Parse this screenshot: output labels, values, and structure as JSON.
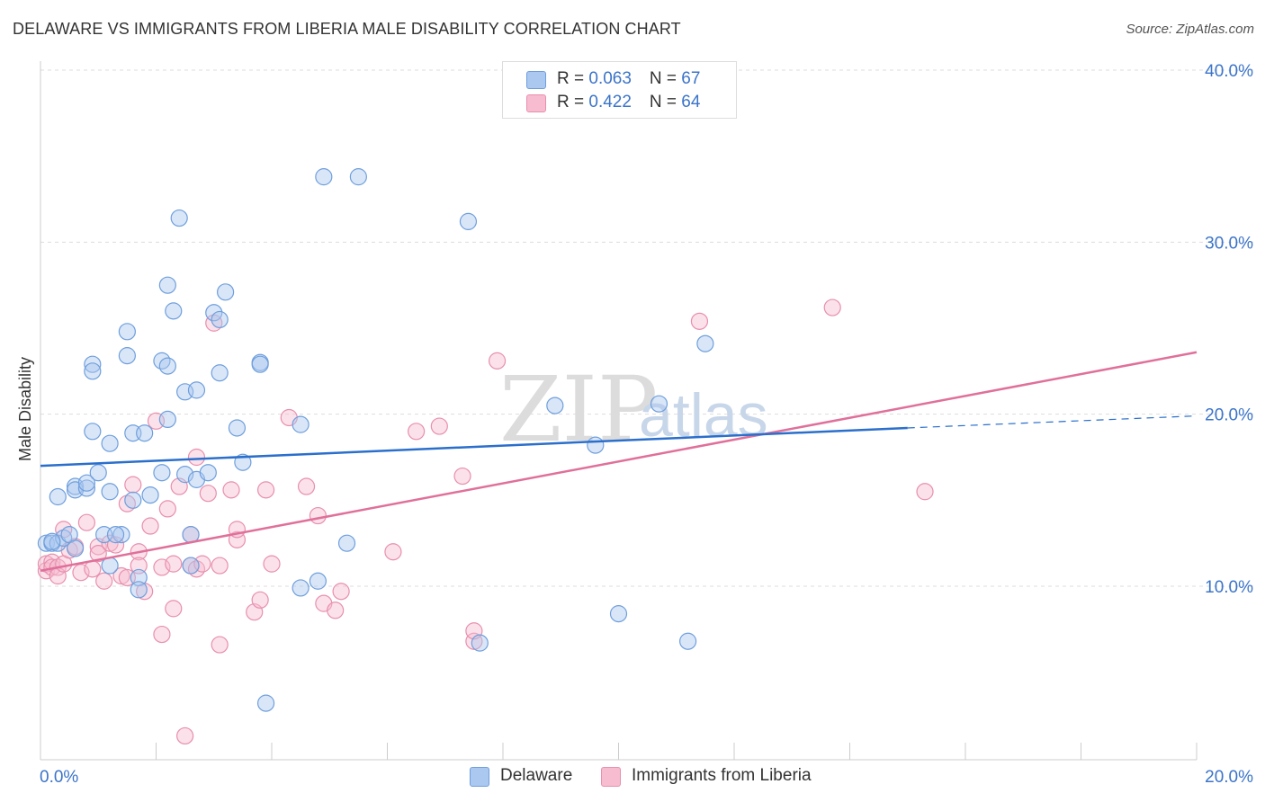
{
  "title": "DELAWARE VS IMMIGRANTS FROM LIBERIA MALE DISABILITY CORRELATION CHART",
  "source": "Source: ZipAtlas.com",
  "watermark": {
    "zip": "ZIP",
    "atlas": "atlas"
  },
  "legend": {
    "delaware": {
      "r_label": "R = ",
      "r_value": "0.063",
      "n_label": "N = ",
      "n_value": "67"
    },
    "liberia": {
      "r_label": "R = ",
      "r_value": "0.422",
      "n_label": "N = ",
      "n_value": "64"
    }
  },
  "bottom_legend": {
    "delaware": "Delaware",
    "liberia": "Immigrants from Liberia"
  },
  "colors": {
    "delaware_fill": "#aac8f0",
    "delaware_stroke": "#6f9fdc",
    "delaware_line": "#2b6fcc",
    "liberia_fill": "#f7bcd0",
    "liberia_stroke": "#e88fae",
    "liberia_line": "#e0709a",
    "label": "#3b74c9",
    "grid": "#dddddd"
  },
  "chart_data": {
    "type": "scatter",
    "title": "DELAWARE VS IMMIGRANTS FROM LIBERIA MALE DISABILITY CORRELATION CHART",
    "xlabel": "",
    "ylabel": "Male Disability",
    "xlim": [
      0,
      20
    ],
    "ylim": [
      0,
      42
    ],
    "x_tick_labels": {
      "left": "0.0%",
      "right": "20.0%"
    },
    "y_ticks": [
      10,
      20,
      30,
      40
    ],
    "y_tick_labels": [
      "10.0%",
      "20.0%",
      "30.0%",
      "40.0%"
    ],
    "series": [
      {
        "name": "Delaware",
        "r": 0.063,
        "n": 67,
        "trend": {
          "x0": 0.0,
          "y0": 17.0,
          "x1": 15.0,
          "y1": 19.2,
          "dash_to_x": 20.0,
          "dash_to_y": 19.9
        },
        "points": [
          [
            0.1,
            12.5
          ],
          [
            0.2,
            12.5
          ],
          [
            0.3,
            12.5
          ],
          [
            0.4,
            12.8
          ],
          [
            0.5,
            13.0
          ],
          [
            0.6,
            12.2
          ],
          [
            0.3,
            15.2
          ],
          [
            0.6,
            15.8
          ],
          [
            0.6,
            15.6
          ],
          [
            0.8,
            15.7
          ],
          [
            0.8,
            16.0
          ],
          [
            1.0,
            16.6
          ],
          [
            1.1,
            13.0
          ],
          [
            1.2,
            11.2
          ],
          [
            1.2,
            15.5
          ],
          [
            0.9,
            19.0
          ],
          [
            1.2,
            18.3
          ],
          [
            0.9,
            22.9
          ],
          [
            0.9,
            22.5
          ],
          [
            1.5,
            24.8
          ],
          [
            1.5,
            23.4
          ],
          [
            1.6,
            18.9
          ],
          [
            1.6,
            15.0
          ],
          [
            1.7,
            10.5
          ],
          [
            1.7,
            9.8
          ],
          [
            1.8,
            18.9
          ],
          [
            1.9,
            15.3
          ],
          [
            1.4,
            13.0
          ],
          [
            2.1,
            23.1
          ],
          [
            2.1,
            16.6
          ],
          [
            2.2,
            27.5
          ],
          [
            2.2,
            22.8
          ],
          [
            2.2,
            19.7
          ],
          [
            2.3,
            26.0
          ],
          [
            2.4,
            31.4
          ],
          [
            2.5,
            21.3
          ],
          [
            2.5,
            16.5
          ],
          [
            2.6,
            11.2
          ],
          [
            2.6,
            13.0
          ],
          [
            2.7,
            16.2
          ],
          [
            2.7,
            21.4
          ],
          [
            2.9,
            16.6
          ],
          [
            3.0,
            25.9
          ],
          [
            3.1,
            25.5
          ],
          [
            3.1,
            22.4
          ],
          [
            3.2,
            27.1
          ],
          [
            3.4,
            19.2
          ],
          [
            3.5,
            17.2
          ],
          [
            3.8,
            23.0
          ],
          [
            3.8,
            22.9
          ],
          [
            4.5,
            19.4
          ],
          [
            4.5,
            9.9
          ],
          [
            4.8,
            10.3
          ],
          [
            4.9,
            33.8
          ],
          [
            5.3,
            12.5
          ],
          [
            5.5,
            33.8
          ],
          [
            7.4,
            31.2
          ],
          [
            7.6,
            6.7
          ],
          [
            8.9,
            20.5
          ],
          [
            9.6,
            18.2
          ],
          [
            10.0,
            8.4
          ],
          [
            10.7,
            20.6
          ],
          [
            11.2,
            6.8
          ],
          [
            11.5,
            24.1
          ],
          [
            3.9,
            3.2
          ],
          [
            1.3,
            13.0
          ],
          [
            0.2,
            12.6
          ]
        ]
      },
      {
        "name": "Immigrants from Liberia",
        "r": 0.422,
        "n": 64,
        "trend": {
          "x0": 0.0,
          "y0": 10.9,
          "x1": 20.0,
          "y1": 23.6
        },
        "points": [
          [
            0.1,
            10.9
          ],
          [
            0.1,
            11.3
          ],
          [
            0.2,
            11.4
          ],
          [
            0.2,
            11.1
          ],
          [
            0.3,
            11.1
          ],
          [
            0.3,
            10.6
          ],
          [
            0.4,
            11.3
          ],
          [
            0.4,
            13.3
          ],
          [
            0.5,
            12.1
          ],
          [
            0.6,
            12.3
          ],
          [
            0.7,
            10.8
          ],
          [
            0.8,
            13.7
          ],
          [
            0.9,
            11.0
          ],
          [
            1.0,
            12.3
          ],
          [
            1.0,
            11.9
          ],
          [
            1.1,
            10.3
          ],
          [
            1.2,
            12.5
          ],
          [
            1.3,
            12.4
          ],
          [
            1.4,
            10.6
          ],
          [
            1.5,
            10.5
          ],
          [
            1.5,
            14.8
          ],
          [
            1.6,
            15.9
          ],
          [
            1.7,
            12.0
          ],
          [
            1.7,
            11.2
          ],
          [
            1.8,
            9.7
          ],
          [
            1.9,
            13.5
          ],
          [
            2.0,
            19.6
          ],
          [
            2.1,
            7.2
          ],
          [
            2.1,
            11.1
          ],
          [
            2.2,
            14.5
          ],
          [
            2.3,
            11.3
          ],
          [
            2.3,
            8.7
          ],
          [
            2.4,
            15.8
          ],
          [
            2.5,
            1.3
          ],
          [
            2.6,
            13.0
          ],
          [
            2.6,
            11.2
          ],
          [
            2.7,
            17.5
          ],
          [
            2.7,
            11.0
          ],
          [
            2.8,
            11.3
          ],
          [
            2.9,
            15.4
          ],
          [
            3.0,
            25.3
          ],
          [
            3.1,
            6.6
          ],
          [
            3.1,
            11.2
          ],
          [
            3.3,
            15.6
          ],
          [
            3.4,
            12.7
          ],
          [
            3.4,
            13.3
          ],
          [
            3.7,
            8.5
          ],
          [
            3.8,
            9.2
          ],
          [
            3.9,
            15.6
          ],
          [
            4.0,
            11.3
          ],
          [
            4.3,
            19.8
          ],
          [
            4.6,
            15.8
          ],
          [
            4.8,
            14.1
          ],
          [
            4.9,
            9.0
          ],
          [
            5.1,
            8.6
          ],
          [
            5.2,
            9.7
          ],
          [
            6.1,
            12.0
          ],
          [
            6.5,
            19.0
          ],
          [
            6.9,
            19.3
          ],
          [
            7.3,
            16.4
          ],
          [
            7.5,
            6.8
          ],
          [
            7.9,
            23.1
          ],
          [
            11.4,
            25.4
          ],
          [
            13.7,
            26.2
          ]
        ]
      },
      {
        "name": "Immigrants from Liberia (outliers)",
        "points": [
          [
            7.5,
            7.4
          ],
          [
            15.3,
            15.5
          ]
        ]
      }
    ]
  }
}
